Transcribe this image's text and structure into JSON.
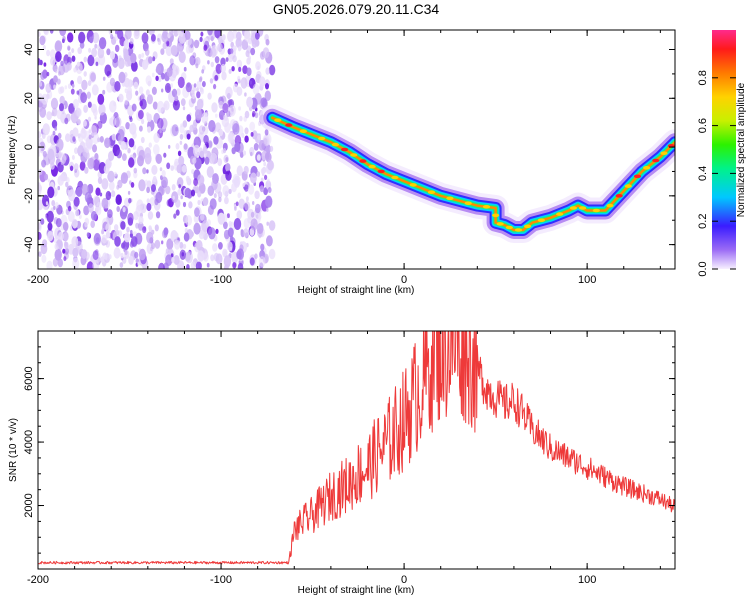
{
  "figure": {
    "title": "GN05.2026.079.20.11.C34"
  },
  "chart_data": [
    {
      "type": "heatmap",
      "xlabel": "Height of straight line (km)",
      "ylabel": "Frequency (Hz)",
      "xlim": [
        -200,
        148
      ],
      "ylim": [
        -50,
        48
      ],
      "x_ticks": [
        "-200",
        "-100",
        "0",
        "100"
      ],
      "x_tick_values": [
        -200,
        -100,
        0,
        100
      ],
      "y_ticks": [
        "40",
        "20",
        "0",
        "-20",
        "-40"
      ],
      "y_tick_values": [
        40,
        20,
        0,
        -20,
        -40
      ],
      "noise_region_x": [
        -200,
        -72
      ],
      "ridge": {
        "x": [
          -72,
          -60,
          -50,
          -40,
          -30,
          -20,
          -10,
          0,
          10,
          20,
          30,
          40,
          50,
          50,
          55,
          60,
          65,
          70,
          80,
          90,
          95,
          100,
          110,
          120,
          130,
          140,
          148
        ],
        "y": [
          12,
          8,
          5,
          2,
          -2,
          -7,
          -11,
          -14,
          -17,
          -20,
          -22,
          -24,
          -25,
          -31,
          -32,
          -34,
          -34,
          -31,
          -29,
          -26,
          -24,
          -26,
          -26,
          -18,
          -10,
          -4,
          2
        ]
      },
      "colorbar": {
        "label": "Normalized spectral amplitude",
        "ticks": [
          "0.0",
          "0.2",
          "0.4",
          "0.6",
          "0.8"
        ],
        "tick_values": [
          0.0,
          0.2,
          0.4,
          0.6,
          0.8
        ],
        "range": [
          0,
          1
        ]
      },
      "colors": {
        "noise": "#7a2ae6",
        "frame": "#000000"
      }
    },
    {
      "type": "line",
      "xlabel": "Height of straight line (km)",
      "ylabel": "SNR (10 * v/v)",
      "xlim": [
        -200,
        148
      ],
      "ylim": [
        0,
        7500
      ],
      "x_ticks": [
        "-200",
        "-100",
        "0",
        "100"
      ],
      "x_tick_values": [
        -200,
        -100,
        0,
        100
      ],
      "y_ticks": [
        "2000",
        "4000",
        "6000"
      ],
      "y_tick_values": [
        2000,
        4000,
        6000
      ],
      "series": [
        {
          "color": "#ee3a3a",
          "x": [
            -200,
            -150,
            -100,
            -63,
            -60,
            -55,
            -50,
            -45,
            -40,
            -35,
            -30,
            -25,
            -20,
            -15,
            -10,
            -5,
            0,
            5,
            10,
            15,
            20,
            25,
            30,
            35,
            40,
            45,
            50,
            55,
            60,
            65,
            70,
            80,
            90,
            100,
            110,
            120,
            130,
            140,
            148
          ],
          "y": [
            200,
            200,
            200,
            200,
            1200,
            1500,
            1700,
            2000,
            2300,
            2500,
            2700,
            3000,
            3200,
            3600,
            3900,
            4300,
            4700,
            5300,
            5900,
            6600,
            7000,
            7100,
            7200,
            6900,
            6300,
            5700,
            5400,
            5200,
            5300,
            4900,
            4400,
            3800,
            3500,
            3200,
            2900,
            2600,
            2400,
            2200,
            1950
          ]
        }
      ]
    }
  ]
}
